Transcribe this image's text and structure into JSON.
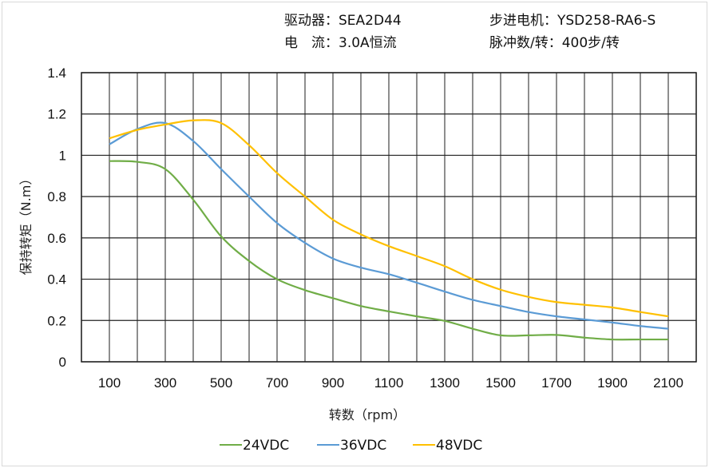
{
  "header": {
    "driver": "驱动器：SEA2D44",
    "current": "电　流：3.0A恒流",
    "motor": "步进电机：YSD258-RA6-S",
    "pulses": "脉冲数/转：400步/转"
  },
  "chart_data": {
    "type": "line",
    "xlabel": "转数（rpm）",
    "ylabel": "保持转矩（N.m）",
    "xlim": [
      0,
      2200
    ],
    "ylim": [
      0,
      1.4
    ],
    "grid": true,
    "legend_placement": "bottom",
    "x_ticks": [
      "100",
      "300",
      "500",
      "700",
      "900",
      "1100",
      "1300",
      "1500",
      "1700",
      "1900",
      "2100"
    ],
    "y_ticks": [
      "0",
      "0.2",
      "0.4",
      "0.6",
      "0.8",
      "1",
      "1.2",
      "1.4"
    ],
    "x": [
      100,
      200,
      300,
      400,
      500,
      600,
      700,
      800,
      900,
      1000,
      1100,
      1200,
      1300,
      1400,
      1500,
      1600,
      1700,
      1800,
      1900,
      2000,
      2100
    ],
    "series": [
      {
        "name": "24VDC",
        "color": "#70ad47",
        "values": [
          0.972,
          0.968,
          0.933,
          0.785,
          0.607,
          0.488,
          0.4,
          0.347,
          0.308,
          0.27,
          0.244,
          0.22,
          0.198,
          0.16,
          0.128,
          0.128,
          0.13,
          0.117,
          0.108,
          0.108,
          0.108
        ]
      },
      {
        "name": "36VDC",
        "color": "#5b9bd5",
        "values": [
          1.053,
          1.127,
          1.156,
          1.069,
          0.933,
          0.8,
          0.672,
          0.576,
          0.5,
          0.456,
          0.424,
          0.383,
          0.34,
          0.3,
          0.27,
          0.241,
          0.22,
          0.205,
          0.19,
          0.173,
          0.16
        ]
      },
      {
        "name": "48VDC",
        "color": "#ffc000",
        "values": [
          1.082,
          1.123,
          1.149,
          1.169,
          1.156,
          1.049,
          0.914,
          0.8,
          0.688,
          0.617,
          0.56,
          0.512,
          0.463,
          0.4,
          0.349,
          0.314,
          0.289,
          0.276,
          0.263,
          0.241,
          0.22
        ]
      }
    ]
  }
}
